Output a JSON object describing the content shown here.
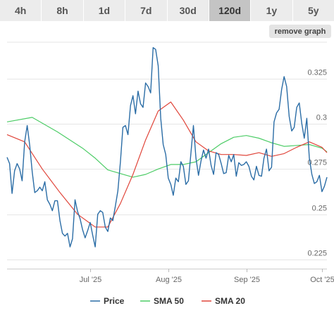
{
  "timeframe_tabs": [
    {
      "label": "4h",
      "active": false
    },
    {
      "label": "8h",
      "active": false
    },
    {
      "label": "1d",
      "active": false
    },
    {
      "label": "7d",
      "active": false
    },
    {
      "label": "30d",
      "active": false
    },
    {
      "label": "120d",
      "active": true
    },
    {
      "label": "1y",
      "active": false
    },
    {
      "label": "5y",
      "active": false
    }
  ],
  "remove_graph_label": "remove graph",
  "chart_data": {
    "type": "line",
    "x_axis": {
      "ticks": [
        {
          "label": "Jul '25",
          "day": 33
        },
        {
          "label": "Aug '25",
          "day": 64
        },
        {
          "label": "Sep '25",
          "day": 95
        },
        {
          "label": "Oct '25",
          "day": 125
        }
      ],
      "range_days": [
        0,
        127
      ]
    },
    "y_axis": {
      "ticks": [
        0.225,
        0.25,
        0.275,
        0.3,
        0.325
      ],
      "tick_labels": [
        "0.225",
        "0.25",
        "0.275",
        "0.3",
        "0.325"
      ],
      "ylim": [
        0.22,
        0.345
      ],
      "grid": true
    },
    "legend_position": "bottom",
    "series": [
      {
        "name": "Price",
        "color": "#2b6da6",
        "points": [
          [
            0,
            0.2815
          ],
          [
            1,
            0.278
          ],
          [
            2,
            0.2615
          ],
          [
            3,
            0.274
          ],
          [
            4,
            0.278
          ],
          [
            5,
            0.275
          ],
          [
            6,
            0.2685
          ],
          [
            7,
            0.29
          ],
          [
            8,
            0.299
          ],
          [
            9,
            0.288
          ],
          [
            10,
            0.2735
          ],
          [
            11,
            0.262
          ],
          [
            12,
            0.263
          ],
          [
            13,
            0.265
          ],
          [
            14,
            0.263
          ],
          [
            15,
            0.268
          ],
          [
            16,
            0.258
          ],
          [
            17,
            0.2555
          ],
          [
            18,
            0.252
          ],
          [
            19,
            0.2575
          ],
          [
            20,
            0.2575
          ],
          [
            21,
            0.2465
          ],
          [
            22,
            0.2395
          ],
          [
            23,
            0.238
          ],
          [
            24,
            0.2395
          ],
          [
            25,
            0.232
          ],
          [
            26,
            0.2365
          ],
          [
            27,
            0.258
          ],
          [
            28,
            0.2515
          ],
          [
            29,
            0.2475
          ],
          [
            30,
            0.2415
          ],
          [
            31,
            0.237
          ],
          [
            32,
            0.241
          ],
          [
            33,
            0.2455
          ],
          [
            34,
            0.2385
          ],
          [
            35,
            0.232
          ],
          [
            36,
            0.25
          ],
          [
            37,
            0.252
          ],
          [
            38,
            0.251
          ],
          [
            39,
            0.243
          ],
          [
            40,
            0.2405
          ],
          [
            41,
            0.248
          ],
          [
            42,
            0.2465
          ],
          [
            43,
            0.2545
          ],
          [
            44,
            0.263
          ],
          [
            45,
            0.279
          ],
          [
            46,
            0.298
          ],
          [
            47,
            0.299
          ],
          [
            48,
            0.294
          ],
          [
            49,
            0.31
          ],
          [
            50,
            0.3155
          ],
          [
            51,
            0.3055
          ],
          [
            52,
            0.318
          ],
          [
            53,
            0.311
          ],
          [
            54,
            0.309
          ],
          [
            55,
            0.3225
          ],
          [
            56,
            0.3205
          ],
          [
            57,
            0.317
          ],
          [
            58,
            0.342
          ],
          [
            59,
            0.341
          ],
          [
            60,
            0.332
          ],
          [
            61,
            0.303
          ],
          [
            62,
            0.2885
          ],
          [
            63,
            0.283
          ],
          [
            64,
            0.27
          ],
          [
            65,
            0.2665
          ],
          [
            66,
            0.2605
          ],
          [
            67,
            0.27
          ],
          [
            68,
            0.268
          ],
          [
            69,
            0.279
          ],
          [
            70,
            0.2765
          ],
          [
            71,
            0.2665
          ],
          [
            72,
            0.2685
          ],
          [
            73,
            0.284
          ],
          [
            74,
            0.299
          ],
          [
            75,
            0.281
          ],
          [
            76,
            0.2715
          ],
          [
            77,
            0.2795
          ],
          [
            78,
            0.2855
          ],
          [
            79,
            0.281
          ],
          [
            80,
            0.286
          ],
          [
            81,
            0.277
          ],
          [
            82,
            0.272
          ],
          [
            83,
            0.284
          ],
          [
            84,
            0.283
          ],
          [
            85,
            0.278
          ],
          [
            86,
            0.2725
          ],
          [
            87,
            0.273
          ],
          [
            88,
            0.2825
          ],
          [
            89,
            0.279
          ],
          [
            90,
            0.283
          ],
          [
            91,
            0.271
          ],
          [
            92,
            0.2785
          ],
          [
            93,
            0.277
          ],
          [
            94,
            0.2775
          ],
          [
            95,
            0.279
          ],
          [
            96,
            0.2765
          ],
          [
            97,
            0.271
          ],
          [
            98,
            0.269
          ],
          [
            99,
            0.2765
          ],
          [
            100,
            0.2715
          ],
          [
            101,
            0.271
          ],
          [
            102,
            0.281
          ],
          [
            103,
            0.286
          ],
          [
            104,
            0.274
          ],
          [
            105,
            0.276
          ],
          [
            106,
            0.301
          ],
          [
            107,
            0.306
          ],
          [
            108,
            0.308
          ],
          [
            109,
            0.319
          ],
          [
            110,
            0.326
          ],
          [
            111,
            0.3205
          ],
          [
            112,
            0.304
          ],
          [
            113,
            0.296
          ],
          [
            114,
            0.298
          ],
          [
            115,
            0.309
          ],
          [
            116,
            0.3115
          ],
          [
            117,
            0.3
          ],
          [
            118,
            0.292
          ],
          [
            119,
            0.303
          ],
          [
            120,
            0.281
          ],
          [
            121,
            0.272
          ],
          [
            122,
            0.267
          ],
          [
            123,
            0.268
          ],
          [
            124,
            0.2715
          ],
          [
            125,
            0.2625
          ],
          [
            126,
            0.2655
          ],
          [
            127,
            0.2705
          ]
        ]
      },
      {
        "name": "SMA 50",
        "color": "#4ccc66",
        "points": [
          [
            0,
            0.301
          ],
          [
            10,
            0.3035
          ],
          [
            20,
            0.2955
          ],
          [
            30,
            0.2865
          ],
          [
            35,
            0.281
          ],
          [
            40,
            0.2745
          ],
          [
            45,
            0.2725
          ],
          [
            50,
            0.2705
          ],
          [
            55,
            0.272
          ],
          [
            60,
            0.275
          ],
          [
            65,
            0.2775
          ],
          [
            70,
            0.2775
          ],
          [
            75,
            0.279
          ],
          [
            80,
            0.284
          ],
          [
            85,
            0.289
          ],
          [
            90,
            0.2925
          ],
          [
            95,
            0.2935
          ],
          [
            100,
            0.292
          ],
          [
            105,
            0.2895
          ],
          [
            110,
            0.2875
          ],
          [
            115,
            0.288
          ],
          [
            120,
            0.2885
          ],
          [
            125,
            0.2865
          ],
          [
            127,
            0.2845
          ]
        ]
      },
      {
        "name": "SMA 20",
        "color": "#e0453a",
        "points": [
          [
            0,
            0.294
          ],
          [
            7,
            0.29
          ],
          [
            14,
            0.275
          ],
          [
            21,
            0.262
          ],
          [
            28,
            0.25
          ],
          [
            35,
            0.243
          ],
          [
            40,
            0.243
          ],
          [
            45,
            0.256
          ],
          [
            50,
            0.272
          ],
          [
            55,
            0.291
          ],
          [
            60,
            0.307
          ],
          [
            65,
            0.312
          ],
          [
            70,
            0.302
          ],
          [
            75,
            0.29
          ],
          [
            80,
            0.285
          ],
          [
            85,
            0.283
          ],
          [
            90,
            0.283
          ],
          [
            95,
            0.2825
          ],
          [
            100,
            0.284
          ],
          [
            105,
            0.282
          ],
          [
            110,
            0.2835
          ],
          [
            115,
            0.287
          ],
          [
            120,
            0.29
          ],
          [
            125,
            0.287
          ],
          [
            127,
            0.284
          ]
        ]
      }
    ]
  }
}
